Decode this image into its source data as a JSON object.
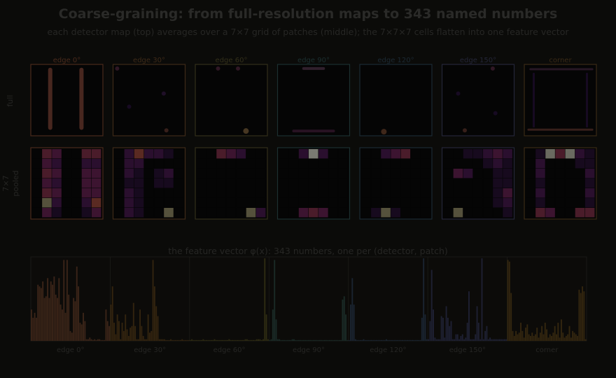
{
  "title": "Coarse-graining: from full-resolution maps to 343 named numbers",
  "subtitle": "each detector map (top) averages over a 7×7 grid of patches (middle); the 7×7×7 cells flatten into one feature vector",
  "row_labels": {
    "full": "full",
    "pooled_line1": "7×7",
    "pooled_line2": "pooled"
  },
  "vector_caption": "the feature vector φ(x): 343 numbers, one per (detector, patch)",
  "colors": {
    "background": "#0b0b09",
    "text_dim": "#2a2a28",
    "panel_bg": "#050505"
  },
  "detectors": [
    {
      "name": "edge 0°",
      "color": "#4a2a1c",
      "bar_color": "#3a2418"
    },
    {
      "name": "edge 30°",
      "color": "#3e2a18",
      "bar_color": "#33240f"
    },
    {
      "name": "edge 60°",
      "color": "#33301a",
      "bar_color": "#2e2b12"
    },
    {
      "name": "edge 90°",
      "color": "#1c3030",
      "bar_color": "#1a2a26"
    },
    {
      "name": "edge 120°",
      "color": "#1c2a34",
      "bar_color": "#1a2430"
    },
    {
      "name": "edge 150°",
      "color": "#242638",
      "bar_color": "#1e2032"
    },
    {
      "name": "corner",
      "color": "#3a2a16",
      "bar_color": "#33260f"
    }
  ],
  "pooled_grids": [
    [
      [
        0,
        4,
        3,
        0,
        0,
        4,
        4
      ],
      [
        0,
        3,
        2,
        0,
        0,
        2,
        2
      ],
      [
        0,
        4,
        3,
        0,
        0,
        3,
        3
      ],
      [
        0,
        3,
        2,
        0,
        0,
        3,
        3
      ],
      [
        0,
        4,
        3,
        0,
        0,
        3,
        3
      ],
      [
        0,
        6,
        2,
        0,
        0,
        2,
        5
      ],
      [
        0,
        3,
        1,
        0,
        0,
        1,
        3
      ]
    ],
    [
      [
        0,
        2,
        5,
        2,
        2,
        1,
        0
      ],
      [
        0,
        2,
        2,
        0,
        0,
        0,
        0
      ],
      [
        0,
        2,
        1,
        0,
        1,
        2,
        0
      ],
      [
        0,
        1,
        1,
        0,
        1,
        1,
        0
      ],
      [
        0,
        2,
        1,
        0,
        0,
        0,
        0
      ],
      [
        0,
        2,
        1,
        0,
        0,
        0,
        0
      ],
      [
        0,
        2,
        1,
        0,
        0,
        6,
        0
      ]
    ],
    [
      [
        0,
        0,
        4,
        3,
        2,
        0,
        0
      ],
      [
        0,
        0,
        0,
        0,
        0,
        0,
        0
      ],
      [
        0,
        0,
        0,
        0,
        0,
        0,
        0
      ],
      [
        0,
        0,
        0,
        0,
        0,
        0,
        0
      ],
      [
        0,
        0,
        0,
        0,
        0,
        0,
        0
      ],
      [
        0,
        0,
        0,
        0,
        0,
        0,
        0
      ],
      [
        0,
        0,
        0,
        0,
        0,
        6,
        2
      ]
    ],
    [
      [
        0,
        0,
        2,
        8,
        2,
        0,
        0
      ],
      [
        0,
        0,
        0,
        0,
        0,
        0,
        0
      ],
      [
        0,
        0,
        0,
        0,
        0,
        0,
        0
      ],
      [
        0,
        0,
        0,
        0,
        0,
        0,
        0
      ],
      [
        0,
        0,
        0,
        0,
        0,
        0,
        0
      ],
      [
        0,
        0,
        0,
        0,
        0,
        0,
        0
      ],
      [
        0,
        0,
        3,
        4,
        3,
        0,
        0
      ]
    ],
    [
      [
        0,
        0,
        2,
        3,
        4,
        0,
        0
      ],
      [
        0,
        0,
        0,
        0,
        0,
        0,
        0
      ],
      [
        0,
        0,
        0,
        0,
        0,
        0,
        0
      ],
      [
        0,
        0,
        0,
        0,
        0,
        0,
        0
      ],
      [
        0,
        0,
        0,
        0,
        0,
        0,
        0
      ],
      [
        0,
        0,
        0,
        0,
        0,
        0,
        0
      ],
      [
        0,
        1,
        6,
        1,
        0,
        0,
        0
      ]
    ],
    [
      [
        0,
        0,
        1,
        1,
        2,
        3,
        2
      ],
      [
        0,
        0,
        0,
        0,
        1,
        2,
        1
      ],
      [
        0,
        3,
        2,
        0,
        0,
        1,
        1
      ],
      [
        0,
        0,
        0,
        0,
        0,
        1,
        1
      ],
      [
        0,
        0,
        0,
        0,
        0,
        1,
        3
      ],
      [
        0,
        0,
        0,
        0,
        0,
        1,
        2
      ],
      [
        0,
        6,
        0,
        0,
        0,
        0,
        1
      ]
    ],
    [
      [
        0,
        1,
        7,
        4,
        7,
        2,
        1
      ],
      [
        0,
        2,
        0,
        0,
        0,
        1,
        1
      ],
      [
        0,
        2,
        0,
        0,
        0,
        0,
        2
      ],
      [
        0,
        1,
        0,
        0,
        0,
        0,
        1
      ],
      [
        0,
        2,
        0,
        0,
        0,
        0,
        2
      ],
      [
        0,
        1,
        0,
        0,
        0,
        0,
        1
      ],
      [
        0,
        4,
        3,
        0,
        0,
        4,
        4
      ]
    ]
  ],
  "feature_vector_max": 1.0,
  "feature_vector": [
    [
      0.38,
      0.28,
      0.34,
      0.28,
      0.68,
      0.66,
      0.64,
      0.72,
      0.52,
      0.54,
      0.76,
      0.52,
      0.72,
      0.68,
      0.78,
      0.56,
      0.52,
      0.76,
      0.44,
      0.38,
      0.98,
      0.34,
      0.98,
      0.56,
      0.12,
      0.1,
      0.52,
      0.48,
      0.9,
      0.66,
      0.22,
      0.2,
      0.34,
      0.24,
      0.02,
      0.02,
      0.04,
      0.02,
      0.01,
      0.02,
      0.01,
      0.02,
      0.02,
      0.01,
      0.01,
      0.01,
      0.38,
      0.24,
      0.18
    ],
    [
      0.44,
      0.66,
      0.22,
      0.08,
      0.32,
      0.24,
      0.02,
      0.22,
      0.12,
      0.32,
      0.14,
      0.06,
      0.16,
      0.18,
      0.46,
      0.18,
      0.02,
      0.02,
      0.38,
      0.18,
      0.06,
      0.02,
      0.02,
      0.32,
      0.1,
      0.12,
      0.98,
      0.66,
      0.42,
      0.3,
      0.02,
      0.02,
      0.02,
      0.02,
      0.01,
      0.01,
      0.01,
      0.02,
      0.01,
      0.01,
      0.01,
      0.01,
      0.01,
      0.01,
      0.02,
      0.01,
      0.01,
      0.01,
      0.01
    ],
    [
      0.01,
      0.02,
      0.01,
      0.01,
      0.01,
      0.01,
      0.01,
      0.01,
      0.02,
      0.01,
      0.01,
      0.01,
      0.01,
      0.01,
      0.01,
      0.02,
      0.01,
      0.01,
      0.01,
      0.01,
      0.01,
      0.01,
      0.01,
      0.01,
      0.02,
      0.01,
      0.01,
      0.01,
      0.01,
      0.01,
      0.01,
      0.01,
      0.01,
      0.01,
      0.02,
      0.02,
      0.01,
      0.01,
      0.01,
      0.01,
      0.01,
      0.02,
      0.02,
      0.02,
      0.01,
      0.02,
      1.0,
      0.32,
      0.02
    ],
    [
      0.01,
      0.02,
      0.38,
      0.98,
      0.26,
      0.02,
      0.02,
      0.01,
      0.01,
      0.01,
      0.01,
      0.01,
      0.01,
      0.01,
      0.02,
      0.02,
      0.01,
      0.01,
      0.01,
      0.01,
      0.01,
      0.01,
      0.01,
      0.01,
      0.01,
      0.01,
      0.01,
      0.01,
      0.01,
      0.01,
      0.01,
      0.01,
      0.01,
      0.01,
      0.01,
      0.01,
      0.01,
      0.01,
      0.01,
      0.01,
      0.01,
      0.01,
      0.01,
      0.01,
      0.01,
      0.5,
      0.54,
      0.32,
      0.01
    ],
    [
      0.01,
      0.44,
      0.76,
      0.44,
      0.02,
      0.01,
      0.01,
      0.01,
      0.01,
      0.02,
      0.01,
      0.01,
      0.01,
      0.01,
      0.01,
      0.01,
      0.01,
      0.01,
      0.01,
      0.01,
      0.01,
      0.01,
      0.01,
      0.02,
      0.01,
      0.01,
      0.01,
      0.01,
      0.01,
      0.01,
      0.01,
      0.01,
      0.01,
      0.01,
      0.01,
      0.01,
      0.01,
      0.01,
      0.01,
      0.01,
      0.01,
      0.01,
      0.01,
      0.01,
      0.01,
      0.28,
      1.0,
      0.32,
      0.02
    ],
    [
      0.02,
      0.24,
      0.86,
      0.38,
      0.04,
      0.02,
      0.02,
      0.02,
      0.3,
      0.28,
      0.04,
      0.42,
      0.28,
      0.18,
      0.24,
      0.02,
      0.02,
      0.08,
      0.08,
      0.02,
      0.06,
      0.08,
      0.02,
      0.04,
      0.22,
      0.6,
      0.02,
      0.02,
      0.02,
      0.08,
      0.42,
      0.22,
      0.02,
      1.0,
      0.02,
      0.12,
      0.18,
      0.02,
      0.04,
      0.02,
      0.02,
      0.02,
      0.02,
      0.02,
      0.02,
      0.02,
      0.02,
      0.02,
      0.02
    ],
    [
      0.98,
      0.96,
      0.58,
      0.12,
      0.06,
      0.12,
      0.08,
      0.1,
      0.22,
      0.12,
      0.04,
      0.16,
      0.2,
      0.08,
      0.06,
      0.1,
      0.06,
      0.08,
      0.16,
      0.04,
      0.1,
      0.18,
      0.08,
      0.22,
      0.14,
      0.04,
      0.08,
      0.06,
      0.1,
      0.18,
      0.08,
      0.22,
      0.04,
      0.26,
      0.1,
      0.04,
      0.06,
      0.08,
      0.18,
      0.04,
      0.12,
      0.1,
      0.08,
      0.06,
      0.62,
      0.58,
      0.66,
      0.6,
      0.02
    ]
  ]
}
